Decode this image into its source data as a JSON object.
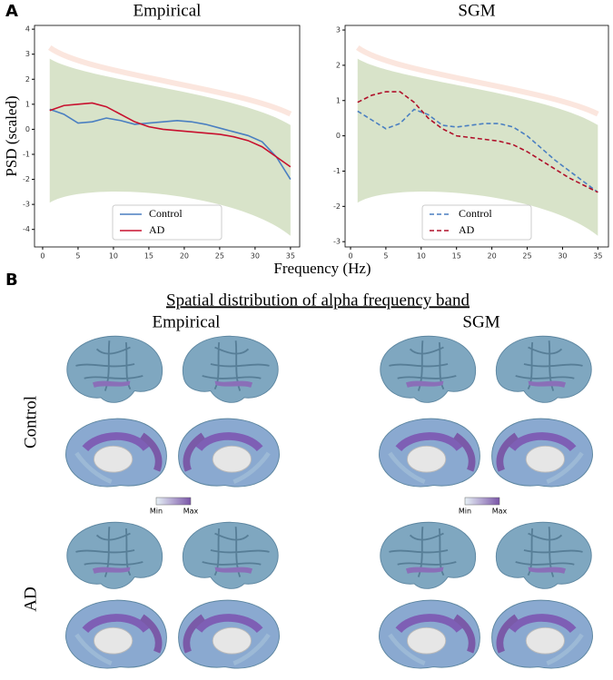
{
  "panel_labels": [
    "A",
    "B"
  ],
  "shared_x_label": "Frequency (Hz)",
  "chart_data": [
    {
      "type": "line",
      "title": "Empirical",
      "y_label": "PSD (scaled)",
      "x": [
        1,
        3,
        5,
        7,
        9,
        11,
        13,
        15,
        17,
        19,
        21,
        23,
        25,
        27,
        29,
        31,
        33,
        35
      ],
      "series": [
        {
          "name": "Control",
          "color": "#4a7fc1",
          "linestyle": "solid",
          "values": [
            0.8,
            0.6,
            0.25,
            0.3,
            0.45,
            0.35,
            0.2,
            0.25,
            0.3,
            0.35,
            0.3,
            0.2,
            0.05,
            -0.1,
            -0.25,
            -0.5,
            -1.1,
            -2.0
          ]
        },
        {
          "name": "AD",
          "color": "#c8102e",
          "linestyle": "solid",
          "values": [
            0.75,
            0.95,
            1.0,
            1.05,
            0.9,
            0.6,
            0.3,
            0.1,
            0.0,
            -0.05,
            -0.1,
            -0.15,
            -0.2,
            -0.3,
            -0.45,
            -0.7,
            -1.1,
            -1.5
          ]
        }
      ],
      "xlim": [
        -1.15,
        36.3
      ],
      "xticks": [
        0,
        5,
        10,
        15,
        20,
        25,
        30,
        35
      ],
      "ylim": [
        -4.7,
        4.15
      ],
      "yticks": [
        -4,
        -3,
        -2,
        -1,
        0,
        1,
        2,
        3,
        4
      ],
      "legend": "lower center"
    },
    {
      "type": "line",
      "title": "SGM",
      "x": [
        1,
        3,
        5,
        7,
        9,
        11,
        13,
        15,
        17,
        19,
        21,
        23,
        25,
        27,
        29,
        31,
        33,
        35
      ],
      "series": [
        {
          "name": "Control",
          "color": "#4a7fc1",
          "linestyle": "dashed",
          "values": [
            0.7,
            0.45,
            0.2,
            0.35,
            0.75,
            0.6,
            0.3,
            0.25,
            0.3,
            0.35,
            0.35,
            0.25,
            0.0,
            -0.35,
            -0.7,
            -1.0,
            -1.3,
            -1.6
          ]
        },
        {
          "name": "AD",
          "color": "#b0102a",
          "linestyle": "dashed",
          "values": [
            0.95,
            1.15,
            1.25,
            1.25,
            0.95,
            0.5,
            0.2,
            0.0,
            -0.05,
            -0.1,
            -0.15,
            -0.25,
            -0.45,
            -0.7,
            -0.95,
            -1.2,
            -1.4,
            -1.6
          ]
        }
      ],
      "xlim": [
        -0.77,
        36.5
      ],
      "xticks": [
        0,
        5,
        10,
        15,
        20,
        25,
        30,
        35
      ],
      "ylim": [
        -3.15,
        3.13
      ],
      "yticks": [
        -3,
        -2,
        -1,
        0,
        1,
        2,
        3
      ],
      "legend": "lower center"
    }
  ],
  "panel_b": {
    "title": "Spatial distribution of alpha frequency band",
    "columns": [
      "Empirical",
      "SGM"
    ],
    "rows": [
      "Control",
      "AD"
    ],
    "colorbar": {
      "min": "Min",
      "max": "Max"
    }
  }
}
